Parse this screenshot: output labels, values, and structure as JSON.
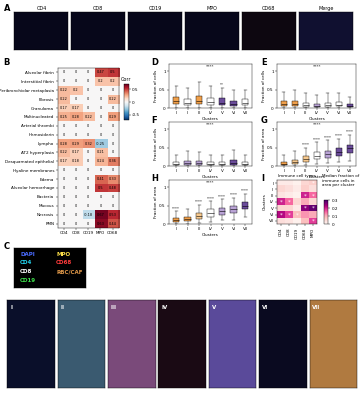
{
  "images": {
    "A": {
      "title": "A",
      "labels": [
        "CD4",
        "CD8",
        "CD19",
        "MPO",
        "CD68",
        "Merge"
      ]
    },
    "C": {
      "title": "C",
      "legend": [
        {
          "name": "DAPI",
          "color": "#4a6bff"
        },
        {
          "name": "CD4",
          "color": "#22d3ee"
        },
        {
          "name": "CD8",
          "color": "#ffffff"
        },
        {
          "name": "CD19",
          "color": "#3ddc4a"
        },
        {
          "name": "MPO",
          "color": "#ffe14a"
        },
        {
          "name": "CD68",
          "color": "#ff3b3b"
        },
        {
          "name": "RBC/CAF",
          "color": "#e39a4a"
        }
      ],
      "labels": [
        "I",
        "II",
        "III",
        "IV",
        "V",
        "VI",
        "VII"
      ]
    }
  },
  "chart_data": [
    {
      "type": "heatmap",
      "title": "B",
      "x": [
        "CD4",
        "CD8",
        "CD19",
        "MPO",
        "CD68"
      ],
      "y": [
        "Alveolar fibrin",
        "Interstitial fibrin",
        "Peribronchiolar metaplasia",
        "Fibrosis",
        "Granuloma",
        "Multinucleated",
        "Arterial thrombi",
        "Hemosiderin",
        "Lympho",
        "AT2 hyperplasia",
        "Desquamated epithelial",
        "Hyaline membranes",
        "Edema",
        "Alveolar hemorrhage",
        "Bacteria",
        "Mucous",
        "Necrosis",
        "PMN"
      ],
      "cells": [
        [
          0,
          0,
          0,
          0.47,
          0.5
        ],
        [
          0,
          0,
          0,
          0.2,
          0.2
        ],
        [
          0.22,
          0.2,
          0,
          0,
          0
        ],
        [
          0.22,
          0,
          0,
          0,
          0.22
        ],
        [
          0.17,
          0.17,
          0,
          0,
          0
        ],
        [
          0.25,
          0.28,
          0.22,
          0,
          0.29
        ],
        [
          0,
          0,
          0,
          0,
          0
        ],
        [
          0,
          0,
          0,
          0,
          0
        ],
        [
          0.28,
          0.29,
          0.32,
          -0.25,
          0
        ],
        [
          0.22,
          0.17,
          0,
          0.21,
          0
        ],
        [
          0.17,
          0.18,
          0,
          0.24,
          0.36
        ],
        [
          0,
          0,
          0,
          0,
          0
        ],
        [
          0,
          0,
          0,
          0.41,
          0.33
        ],
        [
          0,
          0,
          0,
          0.5,
          0.48
        ],
        [
          0,
          0,
          0,
          0,
          0
        ],
        [
          0,
          0,
          0,
          0,
          0
        ],
        [
          0,
          0,
          -0.18,
          0.67,
          0.53
        ],
        [
          0,
          0,
          0,
          0.63,
          0.44
        ]
      ],
      "data_labels": true,
      "color_bar": {
        "title": "Corr",
        "lim": [
          -0.7,
          0.7
        ],
        "ticks": [
          -0.5,
          0,
          0.5
        ]
      }
    },
    {
      "type": "box",
      "title": "D",
      "categories": [
        "I",
        "II",
        "III",
        "IV",
        "V",
        "VI",
        "VII"
      ],
      "xlabel": "Clusters",
      "ylabel": "Fraction of cells",
      "q1": [
        0.1,
        0.08,
        0.12,
        0.09,
        0.08,
        0.05,
        0.08
      ],
      "median": [
        0.18,
        0.15,
        0.2,
        0.16,
        0.14,
        0.1,
        0.15
      ],
      "q3": [
        0.3,
        0.25,
        0.32,
        0.28,
        0.26,
        0.2,
        0.25
      ],
      "low": [
        0,
        0,
        0,
        0,
        0,
        0,
        0
      ],
      "high": [
        0.6,
        0.55,
        0.7,
        0.6,
        0.55,
        0.5,
        0.5
      ],
      "colors": [
        "#f0a04b",
        "#ffffff",
        "#f0a04b",
        "#ffffff",
        "#6b4c9a",
        "#6b4c9a",
        "#ffffff"
      ],
      "annotations": [
        null,
        null,
        null,
        null,
        "**",
        null,
        null
      ],
      "overall_annotation": "****",
      "ylim": [
        0,
        1.2
      ],
      "yticks": [
        0,
        0.5,
        1
      ]
    },
    {
      "type": "box",
      "title": "E",
      "categories": [
        "I",
        "II",
        "III",
        "IV",
        "V",
        "VI",
        "VII"
      ],
      "xlabel": "Clusters",
      "ylabel": "Fraction of cells",
      "q1": [
        0.05,
        0.06,
        0.04,
        0.03,
        0.04,
        0.05,
        0.02
      ],
      "median": [
        0.1,
        0.11,
        0.08,
        0.06,
        0.08,
        0.09,
        0.05
      ],
      "q3": [
        0.18,
        0.2,
        0.15,
        0.12,
        0.15,
        0.16,
        0.1
      ],
      "low": [
        0,
        0,
        0,
        0,
        0,
        0,
        0
      ],
      "high": [
        0.45,
        0.5,
        0.4,
        0.35,
        0.4,
        0.42,
        0.3
      ],
      "colors": [
        "#f0a04b",
        "#f0a04b",
        "#ffffff",
        "#b9a3d5",
        "#ffffff",
        "#ffffff",
        "#6b4c9a"
      ],
      "annotations": [
        null,
        null,
        null,
        null,
        null,
        null,
        null
      ],
      "overall_annotation": "****",
      "ylim": [
        0,
        1.2
      ],
      "yticks": [
        0,
        0.5,
        1
      ]
    },
    {
      "type": "box",
      "title": "F",
      "categories": [
        "I",
        "II",
        "III",
        "IV",
        "V",
        "VI",
        "VII"
      ],
      "xlabel": "Clusters",
      "ylabel": "Fraction of cells",
      "q1": [
        0.02,
        0.03,
        0.03,
        0.02,
        0.02,
        0.04,
        0.02
      ],
      "median": [
        0.05,
        0.07,
        0.07,
        0.05,
        0.05,
        0.09,
        0.05
      ],
      "q3": [
        0.1,
        0.14,
        0.13,
        0.1,
        0.1,
        0.16,
        0.1
      ],
      "low": [
        0,
        0,
        0,
        0,
        0,
        0,
        0
      ],
      "high": [
        0.3,
        0.4,
        0.38,
        0.3,
        0.3,
        0.45,
        0.3
      ],
      "colors": [
        "#ffffff",
        "#b9a3d5",
        "#b9a3d5",
        "#ffffff",
        "#ffffff",
        "#6b4c9a",
        "#ffffff"
      ],
      "annotations": [
        null,
        null,
        null,
        null,
        null,
        null,
        null
      ],
      "overall_annotation": "****",
      "ylim": [
        0,
        1.2
      ],
      "yticks": [
        0,
        0.5,
        1
      ]
    },
    {
      "type": "box",
      "title": "G",
      "categories": [
        "I",
        "II",
        "III",
        "IV",
        "V",
        "VI",
        "VII"
      ],
      "xlabel": "Clusters",
      "ylabel": "Fraction of area",
      "q1": [
        0.02,
        0.05,
        0.1,
        0.18,
        0.22,
        0.28,
        0.35
      ],
      "median": [
        0.05,
        0.1,
        0.18,
        0.28,
        0.32,
        0.38,
        0.48
      ],
      "q3": [
        0.1,
        0.17,
        0.26,
        0.38,
        0.42,
        0.48,
        0.58
      ],
      "low": [
        0,
        0,
        0.02,
        0.05,
        0.08,
        0.1,
        0.15
      ],
      "high": [
        0.3,
        0.4,
        0.5,
        0.65,
        0.7,
        0.75,
        0.85
      ],
      "colors": [
        "#f0a04b",
        "#f7c98f",
        "#f7c98f",
        "#ffffff",
        "#b9a3d5",
        "#6b4c9a",
        "#6b4c9a"
      ],
      "annotations": [
        null,
        null,
        "****",
        "****",
        "****",
        "****",
        "****"
      ],
      "overall_annotation": "****",
      "ylim": [
        0,
        1.2
      ],
      "yticks": [
        0,
        0.5,
        1
      ]
    },
    {
      "type": "box",
      "title": "H",
      "categories": [
        "I",
        "II",
        "III",
        "IV",
        "V",
        "VI",
        "VII"
      ],
      "xlabel": "Clusters",
      "ylabel": "Fraction of area",
      "q1": [
        0.05,
        0.08,
        0.15,
        0.2,
        0.25,
        0.3,
        0.4
      ],
      "median": [
        0.1,
        0.14,
        0.22,
        0.3,
        0.35,
        0.4,
        0.5
      ],
      "q3": [
        0.16,
        0.2,
        0.3,
        0.4,
        0.45,
        0.5,
        0.6
      ],
      "low": [
        0,
        0.01,
        0.04,
        0.06,
        0.1,
        0.12,
        0.18
      ],
      "high": [
        0.35,
        0.4,
        0.52,
        0.62,
        0.68,
        0.72,
        0.82
      ],
      "colors": [
        "#f0a04b",
        "#f0a04b",
        "#f7c98f",
        "#ffffff",
        "#b9a3d5",
        "#b9a3d5",
        "#6b4c9a"
      ],
      "annotations": [
        "****",
        null,
        "****",
        "****",
        "****",
        "****",
        "****"
      ],
      "overall_annotation": "****",
      "ylim": [
        0,
        1.2
      ],
      "yticks": [
        0,
        0.5,
        1
      ]
    },
    {
      "type": "heatmap",
      "title": "I",
      "xlabel": "Immune cell types",
      "ylabel": "Clusters",
      "x": [
        "CD4",
        "CD8",
        "CD19",
        "CD68",
        "MPO"
      ],
      "y": [
        "I",
        "II",
        "III",
        "IV",
        "V",
        "VI",
        "VII"
      ],
      "cells": [
        [
          0.02,
          0.02,
          0.01,
          0.05,
          0.06
        ],
        [
          0.05,
          0.04,
          0.02,
          0.06,
          0.04
        ],
        [
          0.03,
          0.02,
          0.01,
          0.2,
          0.15
        ],
        [
          0.2,
          0.15,
          0.05,
          0.1,
          0.05
        ],
        [
          0.05,
          0.05,
          0.02,
          0.25,
          0.28
        ],
        [
          0.22,
          0.18,
          0.08,
          0.12,
          0.1
        ],
        [
          0.04,
          0.03,
          0.01,
          0.08,
          0.18
        ]
      ],
      "stars": [
        [
          null,
          null,
          null,
          null,
          "*"
        ],
        [
          null,
          null,
          null,
          null,
          null
        ],
        [
          null,
          null,
          null,
          "*",
          "*"
        ],
        [
          "*",
          "*",
          null,
          null,
          null
        ],
        [
          null,
          null,
          null,
          "*",
          "*"
        ],
        [
          "*",
          "*",
          "*",
          null,
          null
        ],
        [
          null,
          null,
          null,
          null,
          "*"
        ]
      ],
      "color_bar": {
        "title": "Median fraction of immune cells in area per cluster",
        "lim": [
          0,
          0.3
        ],
        "ticks": [
          0,
          0.1,
          0.2,
          0.3
        ]
      }
    }
  ]
}
